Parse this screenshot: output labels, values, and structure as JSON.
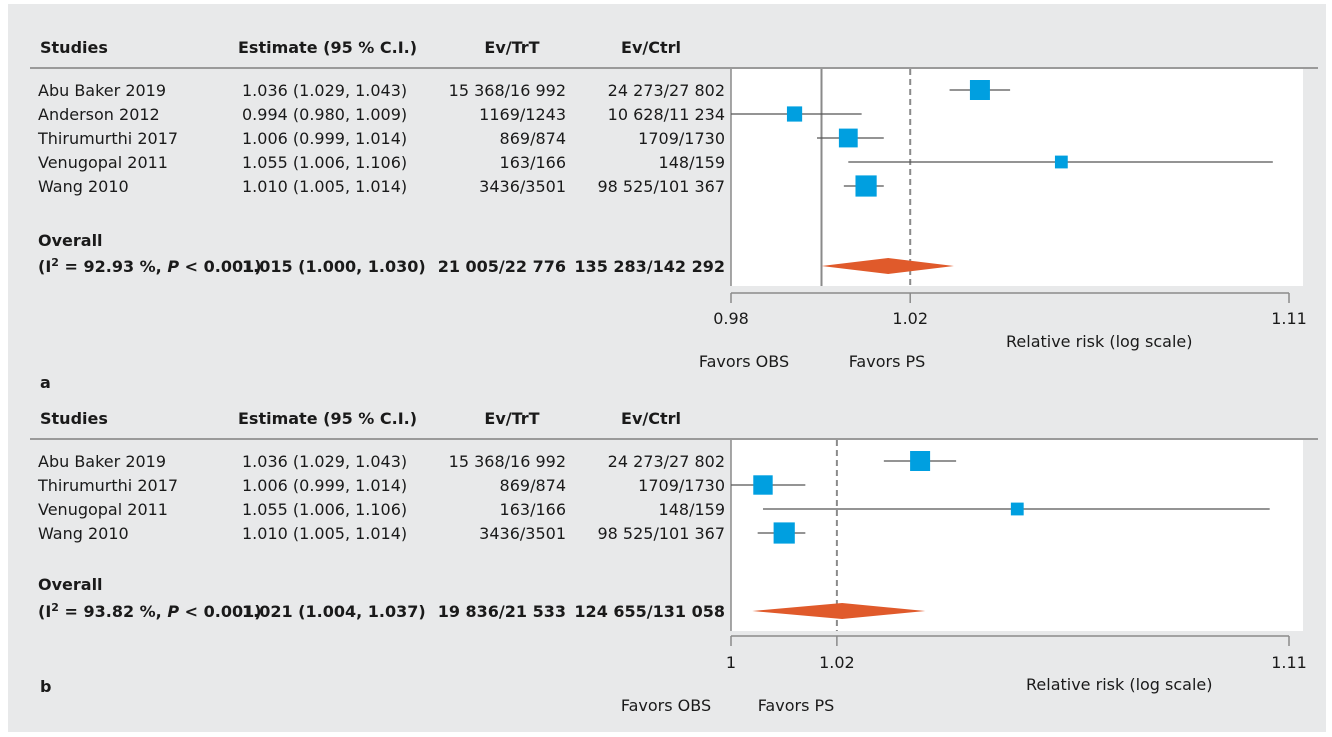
{
  "panels": [
    {
      "label": "a",
      "headers": {
        "studies": "Studies",
        "estimate": "Estimate (95 % C.I.)",
        "evtrt": "Ev/TrT",
        "evctrl": "Ev/Ctrl"
      },
      "studies": [
        {
          "name": "Abu Baker 2019",
          "est_text": "1.036  (1.029, 1.043)",
          "evtrt": "15 368/16 992",
          "evctrl": "24 273/27 802",
          "est": 1.036,
          "lo": 1.029,
          "hi": 1.043,
          "weight": 1.0
        },
        {
          "name": "Anderson 2012",
          "est_text": "0.994  (0.980, 1.009)",
          "evtrt": "1169/1243",
          "evctrl": "10 628/11 234",
          "est": 0.994,
          "lo": 0.98,
          "hi": 1.009,
          "weight": 0.6
        },
        {
          "name": "Thirumurthi 2017",
          "est_text": "1.006  (0.999, 1.014)",
          "evtrt": "869/874",
          "evctrl": "1709/1730",
          "est": 1.006,
          "lo": 0.999,
          "hi": 1.014,
          "weight": 0.9
        },
        {
          "name": "Venugopal 2011",
          "est_text": "1.055  (1.006, 1.106)",
          "evtrt": "163/166",
          "evctrl": "148/159",
          "est": 1.055,
          "lo": 1.006,
          "hi": 1.106,
          "weight": 0.4
        },
        {
          "name": "Wang 2010",
          "est_text": "1.010  (1.005, 1.014)",
          "evtrt": "3436/3501",
          "evctrl": "98 525/101 367",
          "est": 1.01,
          "lo": 1.005,
          "hi": 1.014,
          "weight": 1.1
        }
      ],
      "overall_label": "Overall",
      "overall_het_pre": "(I",
      "overall_het_sup": "2",
      "overall_het_mid": " = 92.93 %, ",
      "overall_het_p": "P",
      "overall_het_post": " < 0.001)",
      "overall_est_text": "1.015 (1.000, 1.030)",
      "overall_evtrt": "21 005/22 776",
      "overall_evctrl": "135 283/142 292",
      "overall": {
        "est": 1.015,
        "lo": 1.0,
        "hi": 1.03
      },
      "axis": {
        "min": 0.98,
        "max": 1.11,
        "ticks": [
          0.98,
          1.02,
          1.11
        ],
        "tick_labels": [
          "0.98",
          "1.02",
          "1.11"
        ],
        "null_line": 1.0,
        "ref_line": 1.02
      },
      "axis_label": "Relative risk (log scale)",
      "favors_left": "Favors OBS",
      "favors_right": "Favors PS"
    },
    {
      "label": "b",
      "headers": {
        "studies": "Studies",
        "estimate": "Estimate (95 % C.I.)",
        "evtrt": "Ev/TrT",
        "evctrl": "Ev/Ctrl"
      },
      "studies": [
        {
          "name": "Abu Baker 2019",
          "est_text": "1.036  (1.029, 1.043)",
          "evtrt": "15 368/16 992",
          "evctrl": "24 273/27 802",
          "est": 1.036,
          "lo": 1.029,
          "hi": 1.043,
          "weight": 1.0
        },
        {
          "name": "Thirumurthi 2017",
          "est_text": "1.006  (0.999, 1.014)",
          "evtrt": "869/874",
          "evctrl": "1709/1730",
          "est": 1.006,
          "lo": 0.999,
          "hi": 1.014,
          "weight": 0.95
        },
        {
          "name": "Venugopal 2011",
          "est_text": "1.055  (1.006, 1.106)",
          "evtrt": "163/166",
          "evctrl": "148/159",
          "est": 1.055,
          "lo": 1.006,
          "hi": 1.106,
          "weight": 0.4
        },
        {
          "name": "Wang 2010",
          "est_text": "1.010  (1.005, 1.014)",
          "evtrt": "3436/3501",
          "evctrl": "98 525/101 367",
          "est": 1.01,
          "lo": 1.005,
          "hi": 1.014,
          "weight": 1.1
        }
      ],
      "overall_label": "Overall",
      "overall_het_pre": "(I",
      "overall_het_sup": "2",
      "overall_het_mid": " = 93.82 %, ",
      "overall_het_p": "P",
      "overall_het_post": " < 0.001)",
      "overall_est_text": "1.021 (1.004, 1.037)",
      "overall_evtrt": "19 836/21 533",
      "overall_evctrl": "124 655/131 058",
      "overall": {
        "est": 1.021,
        "lo": 1.004,
        "hi": 1.037
      },
      "axis": {
        "min": 1.0,
        "max": 1.11,
        "ticks": [
          1.0,
          1.02,
          1.11
        ],
        "tick_labels": [
          "1",
          "1.02",
          "1.11"
        ],
        "null_line": null,
        "ref_line": 1.02
      },
      "axis_label": "Relative risk (log scale)",
      "favors_left": "Favors OBS",
      "favors_right": "Favors PS"
    }
  ],
  "colors": {
    "box": "#009fe0",
    "diamond": "#e05a2b",
    "line": "#555555",
    "plot_bg": "#ffffff",
    "frame_bg": "#e8e9ea"
  },
  "chart_data": [
    {
      "type": "forest",
      "xlabel": "Relative risk (log scale)",
      "log_scale": true,
      "xlim": [
        0.98,
        1.11
      ],
      "studies": [
        "Abu Baker 2019",
        "Anderson 2012",
        "Thirumurthi 2017",
        "Venugopal 2011",
        "Wang 2010"
      ],
      "estimate": [
        1.036,
        0.994,
        1.006,
        1.055,
        1.01
      ],
      "ci_low": [
        1.029,
        0.98,
        0.999,
        1.006,
        1.005
      ],
      "ci_high": [
        1.043,
        1.009,
        1.014,
        1.106,
        1.014
      ],
      "overall": {
        "estimate": 1.015,
        "ci_low": 1.0,
        "ci_high": 1.03,
        "I2": "92.93 %",
        "P": "< 0.001"
      }
    },
    {
      "type": "forest",
      "xlabel": "Relative risk (log scale)",
      "log_scale": true,
      "xlim": [
        1.0,
        1.11
      ],
      "studies": [
        "Abu Baker 2019",
        "Thirumurthi 2017",
        "Venugopal 2011",
        "Wang 2010"
      ],
      "estimate": [
        1.036,
        1.006,
        1.055,
        1.01
      ],
      "ci_low": [
        1.029,
        0.999,
        1.006,
        1.005
      ],
      "ci_high": [
        1.043,
        1.014,
        1.106,
        1.014
      ],
      "overall": {
        "estimate": 1.021,
        "ci_low": 1.004,
        "ci_high": 1.037,
        "I2": "93.82 %",
        "P": "< 0.001"
      }
    }
  ]
}
